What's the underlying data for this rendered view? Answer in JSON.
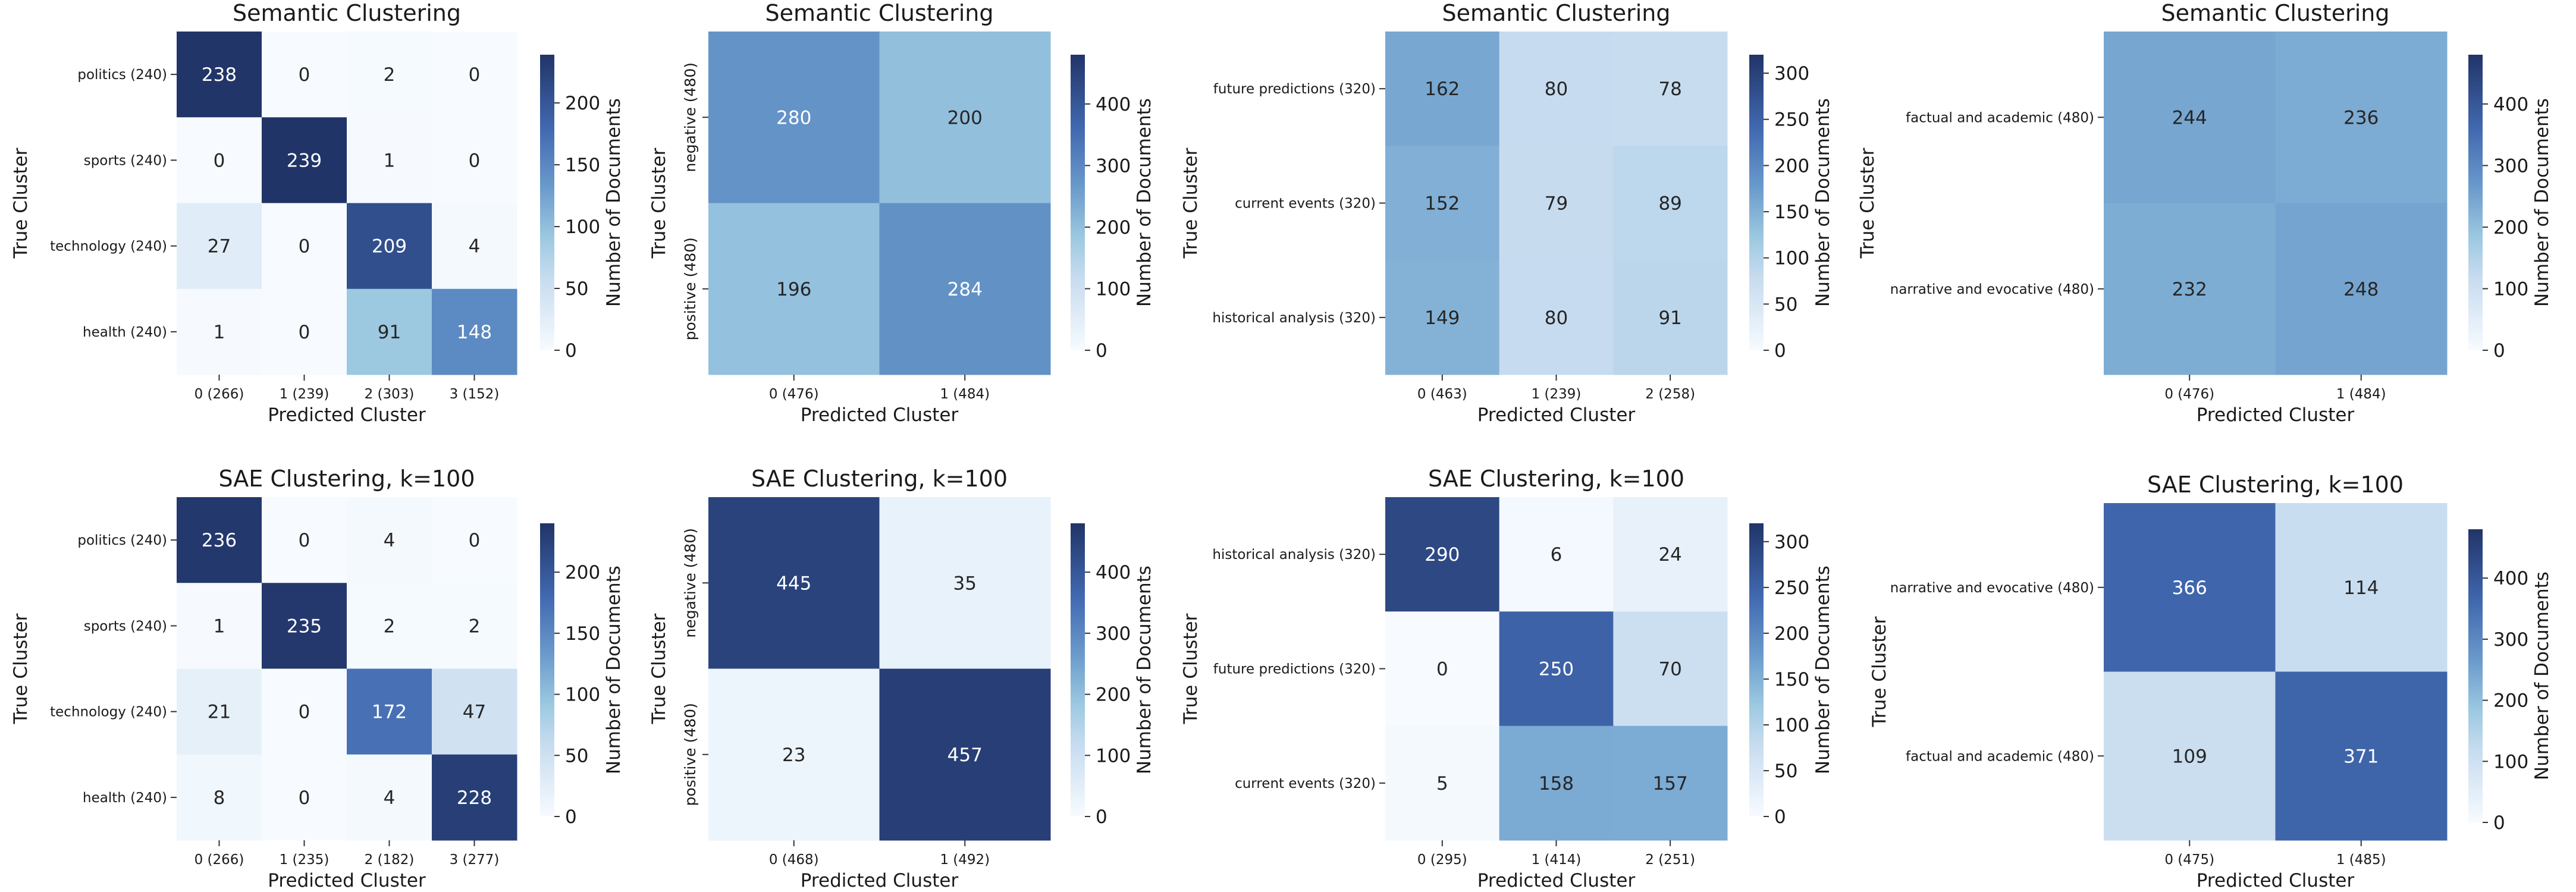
{
  "figure": {
    "colormap": {
      "low": "#f7fbff",
      "mid1": "#c6dbef",
      "mid2": "#6baed6",
      "mid3": "#2171b5",
      "high": "#213468"
    },
    "xlabel": "Predicted Cluster",
    "ylabel": "True Cluster",
    "colorbar_label": "Number of Documents"
  },
  "chart_data": [
    {
      "type": "heatmap",
      "title": "Semantic Clustering",
      "xlabel": "Predicted Cluster",
      "ylabel": "True Cluster",
      "colorbar_label": "Number of Documents",
      "x_ticklabels": [
        "0 (266)",
        "1 (239)",
        "2 (303)",
        "3 (152)"
      ],
      "y_ticklabels": [
        "politics (240)",
        "sports (240)",
        "technology (240)",
        "health (240)"
      ],
      "y_ticklabels_rotated": false,
      "values": [
        [
          238,
          0,
          2,
          0
        ],
        [
          0,
          239,
          1,
          0
        ],
        [
          27,
          0,
          209,
          4
        ],
        [
          1,
          0,
          91,
          148
        ]
      ],
      "vmin": 0,
      "vmax": 239,
      "colorbar_ticks": [
        0,
        50,
        100,
        150,
        200
      ]
    },
    {
      "type": "heatmap",
      "title": "Semantic Clustering",
      "xlabel": "Predicted Cluster",
      "ylabel": "True Cluster",
      "colorbar_label": "Number of Documents",
      "x_ticklabels": [
        "0 (476)",
        "1 (484)"
      ],
      "y_ticklabels": [
        "negative (480)",
        "positive (480)"
      ],
      "y_ticklabels_rotated": true,
      "values": [
        [
          280,
          200
        ],
        [
          196,
          284
        ]
      ],
      "vmin": 0,
      "vmax": 480,
      "colorbar_ticks": [
        0,
        100,
        200,
        300,
        400
      ]
    },
    {
      "type": "heatmap",
      "title": "Semantic Clustering",
      "xlabel": "Predicted Cluster",
      "ylabel": "True Cluster",
      "colorbar_label": "Number of Documents",
      "x_ticklabels": [
        "0 (463)",
        "1 (239)",
        "2 (258)"
      ],
      "y_ticklabels": [
        "future predictions (320)",
        "current events (320)",
        "historical analysis (320)"
      ],
      "y_ticklabels_rotated": false,
      "values": [
        [
          162,
          80,
          78
        ],
        [
          152,
          79,
          89
        ],
        [
          149,
          80,
          91
        ]
      ],
      "vmin": 0,
      "vmax": 320,
      "colorbar_ticks": [
        0,
        50,
        100,
        150,
        200,
        250,
        300
      ]
    },
    {
      "type": "heatmap",
      "title": "Semantic Clustering",
      "xlabel": "Predicted Cluster",
      "ylabel": "True Cluster",
      "colorbar_label": "Number of Documents",
      "x_ticklabels": [
        "0 (476)",
        "1 (484)"
      ],
      "y_ticklabels": [
        "factual and academic (480)",
        "narrative and evocative (480)"
      ],
      "y_ticklabels_rotated": false,
      "values": [
        [
          244,
          236
        ],
        [
          232,
          248
        ]
      ],
      "vmin": 0,
      "vmax": 480,
      "colorbar_ticks": [
        0,
        100,
        200,
        300,
        400
      ]
    },
    {
      "type": "heatmap",
      "title": "SAE Clustering, k=100",
      "xlabel": "Predicted Cluster",
      "ylabel": "True Cluster",
      "colorbar_label": "Number of Documents",
      "x_ticklabels": [
        "0 (266)",
        "1 (235)",
        "2 (182)",
        "3 (277)"
      ],
      "y_ticklabels": [
        "politics (240)",
        "sports (240)",
        "technology (240)",
        "health (240)"
      ],
      "y_ticklabels_rotated": false,
      "values": [
        [
          236,
          0,
          4,
          0
        ],
        [
          1,
          235,
          2,
          2
        ],
        [
          21,
          0,
          172,
          47
        ],
        [
          8,
          0,
          4,
          228
        ]
      ],
      "vmin": 0,
      "vmax": 240,
      "colorbar_ticks": [
        0,
        50,
        100,
        150,
        200
      ]
    },
    {
      "type": "heatmap",
      "title": "SAE Clustering, k=100",
      "xlabel": "Predicted Cluster",
      "ylabel": "True Cluster",
      "colorbar_label": "Number of Documents",
      "x_ticklabels": [
        "0 (468)",
        "1 (492)"
      ],
      "y_ticklabels": [
        "negative (480)",
        "positive (480)"
      ],
      "y_ticklabels_rotated": true,
      "values": [
        [
          445,
          35
        ],
        [
          23,
          457
        ]
      ],
      "vmin": 0,
      "vmax": 480,
      "colorbar_ticks": [
        0,
        100,
        200,
        300,
        400
      ]
    },
    {
      "type": "heatmap",
      "title": "SAE Clustering, k=100",
      "xlabel": "Predicted Cluster",
      "ylabel": "True Cluster",
      "colorbar_label": "Number of Documents",
      "x_ticklabels": [
        "0 (295)",
        "1 (414)",
        "2 (251)"
      ],
      "y_ticklabels": [
        "historical analysis (320)",
        "future predictions (320)",
        "current events (320)"
      ],
      "y_ticklabels_rotated": false,
      "values": [
        [
          290,
          6,
          24
        ],
        [
          0,
          250,
          70
        ],
        [
          5,
          158,
          157
        ]
      ],
      "vmin": 0,
      "vmax": 320,
      "colorbar_ticks": [
        0,
        50,
        100,
        150,
        200,
        250,
        300
      ]
    },
    {
      "type": "heatmap",
      "title": "SAE Clustering, k=100",
      "xlabel": "Predicted Cluster",
      "ylabel": "True Cluster",
      "colorbar_label": "Number of Documents",
      "x_ticklabels": [
        "0 (475)",
        "1 (485)"
      ],
      "y_ticklabels": [
        "narrative and evocative (480)",
        "factual and academic (480)"
      ],
      "y_ticklabels_rotated": false,
      "values": [
        [
          366,
          114
        ],
        [
          109,
          371
        ]
      ],
      "vmin": 0,
      "vmax": 480,
      "colorbar_ticks": [
        0,
        100,
        200,
        300,
        400
      ]
    }
  ]
}
